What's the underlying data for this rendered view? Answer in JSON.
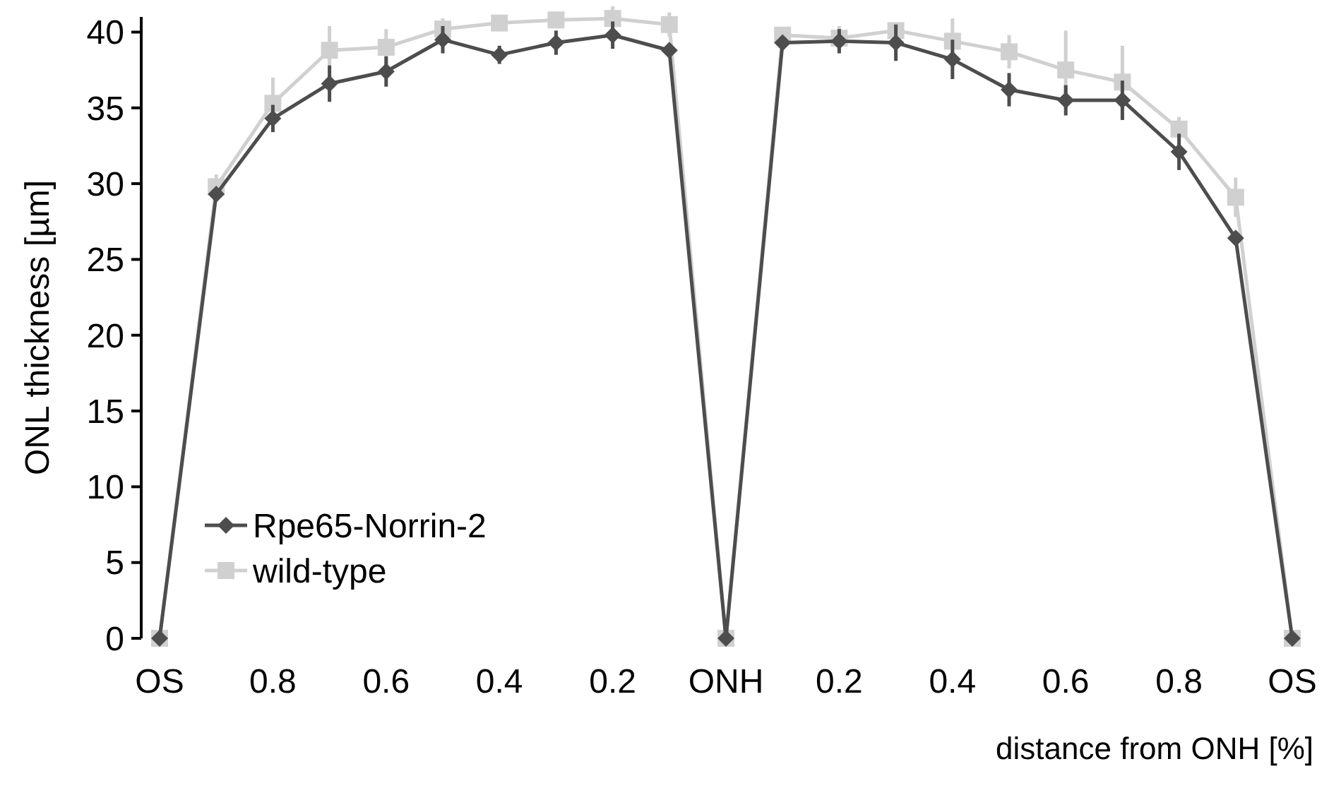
{
  "chart_data": {
    "type": "line",
    "xlabel": "distance from ONH [%]",
    "ylabel": "ONL thickness [µm]",
    "categories": [
      "OS",
      null,
      "0.8",
      null,
      "0.6",
      null,
      "0.4",
      null,
      "0.2",
      null,
      "ONH",
      null,
      "0.2",
      null,
      "0.4",
      null,
      "0.6",
      null,
      "0.8",
      null,
      "OS"
    ],
    "ylim": [
      0,
      41
    ],
    "yticks": [
      0,
      5,
      10,
      15,
      20,
      25,
      30,
      35,
      40
    ],
    "grid": false,
    "legend": "bottom left",
    "series": [
      {
        "name": "Rpe65-Norrin-2",
        "color": "#4d4d4d",
        "marker": "diamond",
        "values": [
          0,
          29.3,
          34.3,
          36.6,
          37.4,
          39.5,
          38.5,
          39.3,
          39.8,
          38.8,
          0,
          39.3,
          39.4,
          39.3,
          38.2,
          36.2,
          35.5,
          35.5,
          32.1,
          26.4,
          0
        ],
        "errors": [
          null,
          0.3,
          0.9,
          1.2,
          1.0,
          0.9,
          0.6,
          0.8,
          0.9,
          0.3,
          null,
          0.3,
          0.8,
          1.2,
          1.3,
          1.1,
          1.0,
          1.3,
          1.2,
          0.4,
          null
        ]
      },
      {
        "name": "wild-type",
        "color": "#d0d0d0",
        "marker": "square",
        "values": [
          0,
          29.8,
          35.3,
          38.8,
          39.0,
          40.2,
          40.6,
          40.8,
          40.9,
          40.5,
          0,
          39.8,
          39.6,
          40.1,
          39.4,
          38.7,
          37.5,
          36.7,
          33.6,
          29.1,
          0
        ],
        "errors": [
          null,
          0.8,
          1.7,
          1.6,
          1.2,
          0.7,
          0.3,
          0.4,
          0.8,
          0.8,
          null,
          0.3,
          0.8,
          0.5,
          1.5,
          1.1,
          2.6,
          2.4,
          0.8,
          1.3,
          null
        ]
      }
    ]
  }
}
